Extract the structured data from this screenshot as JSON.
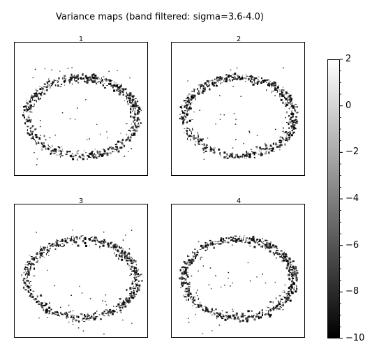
{
  "chart_data": {
    "type": "heatmap",
    "title": "Variance maps (band filtered: sigma=3.6-4.0)",
    "panels": [
      {
        "label": "1"
      },
      {
        "label": "2"
      },
      {
        "label": "3"
      },
      {
        "label": "4"
      }
    ],
    "colorbar": {
      "range": [
        -10,
        2
      ],
      "colormap": "gray",
      "ticks": [
        2,
        0,
        -2,
        -4,
        -6,
        -8,
        -10
      ],
      "tick_labels": [
        "2",
        "0",
        "−2",
        "−4",
        "−6",
        "−8",
        "−10"
      ]
    }
  }
}
